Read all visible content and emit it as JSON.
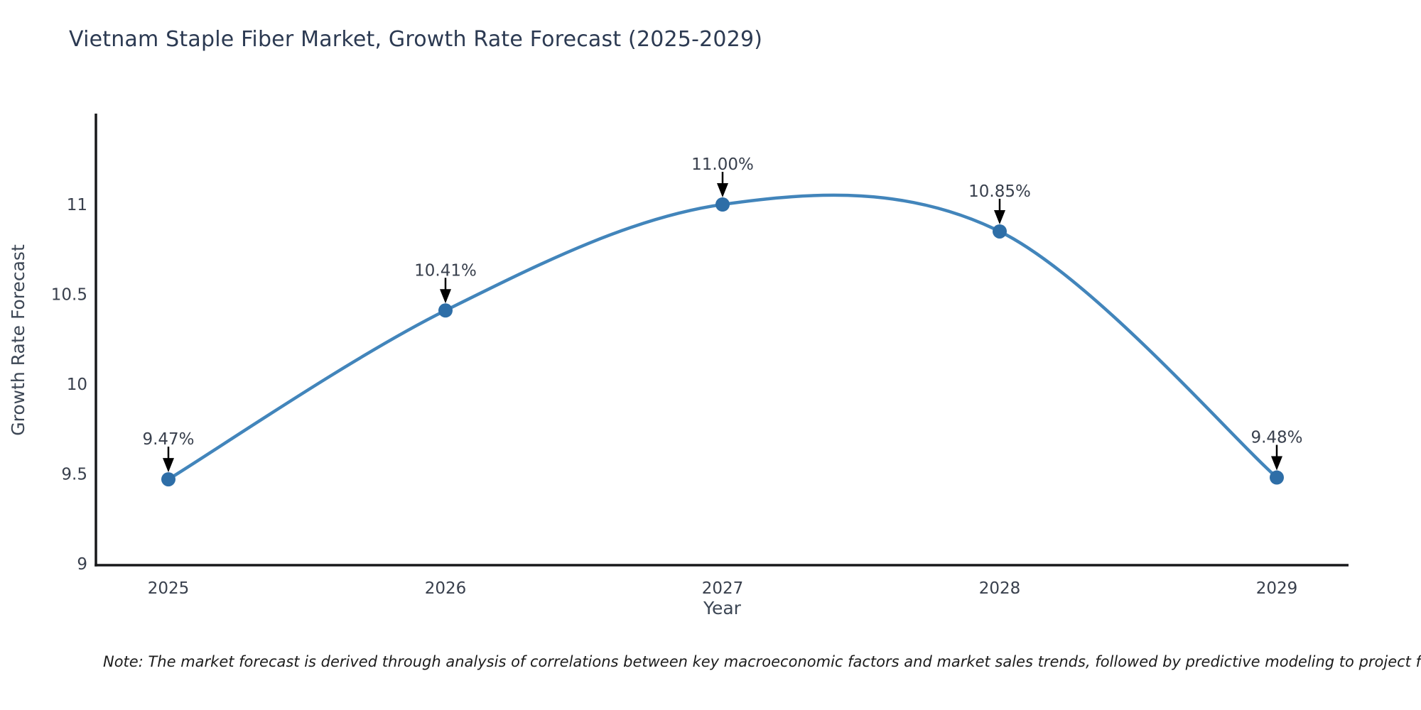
{
  "page": {
    "background": "#ffffff"
  },
  "chart_data": {
    "type": "line",
    "title": "Vietnam Staple Fiber Market, Growth Rate Forecast (2025-2029)",
    "xlabel": "Year",
    "ylabel": "Growth Rate Forecast",
    "x": [
      2025,
      2026,
      2027,
      2028,
      2029
    ],
    "xtick_labels": [
      "2025",
      "2026",
      "2027",
      "2028",
      "2029"
    ],
    "series": [
      {
        "name": "Growth Rate Forecast",
        "values": [
          9.47,
          10.41,
          11.0,
          10.85,
          9.48
        ]
      }
    ],
    "point_labels": [
      "9.47%",
      "10.41%",
      "11.00%",
      "10.85%",
      "9.48%"
    ],
    "yticks": [
      9,
      9.5,
      10,
      10.5,
      11
    ],
    "ytick_labels": [
      "9",
      "9.5",
      "10",
      "10.5",
      "11"
    ],
    "ylim": [
      9,
      11.5
    ],
    "grid": false,
    "legend_position": "none",
    "curve_style": "smooth-spline",
    "annotations_have_arrows": true,
    "colors": {
      "line": "#4285bb",
      "marker": "#2e6ea7",
      "spine": "#18191b",
      "arrow": "#000000",
      "title_text": "#2c3a52",
      "tick_text": "#39404d",
      "note_text": "#1c1c1c"
    },
    "note": "Note: The market forecast is derived through analysis of correlations between key macroeconomic factors and market sales trends, followed by predictive modeling to project future sal"
  }
}
